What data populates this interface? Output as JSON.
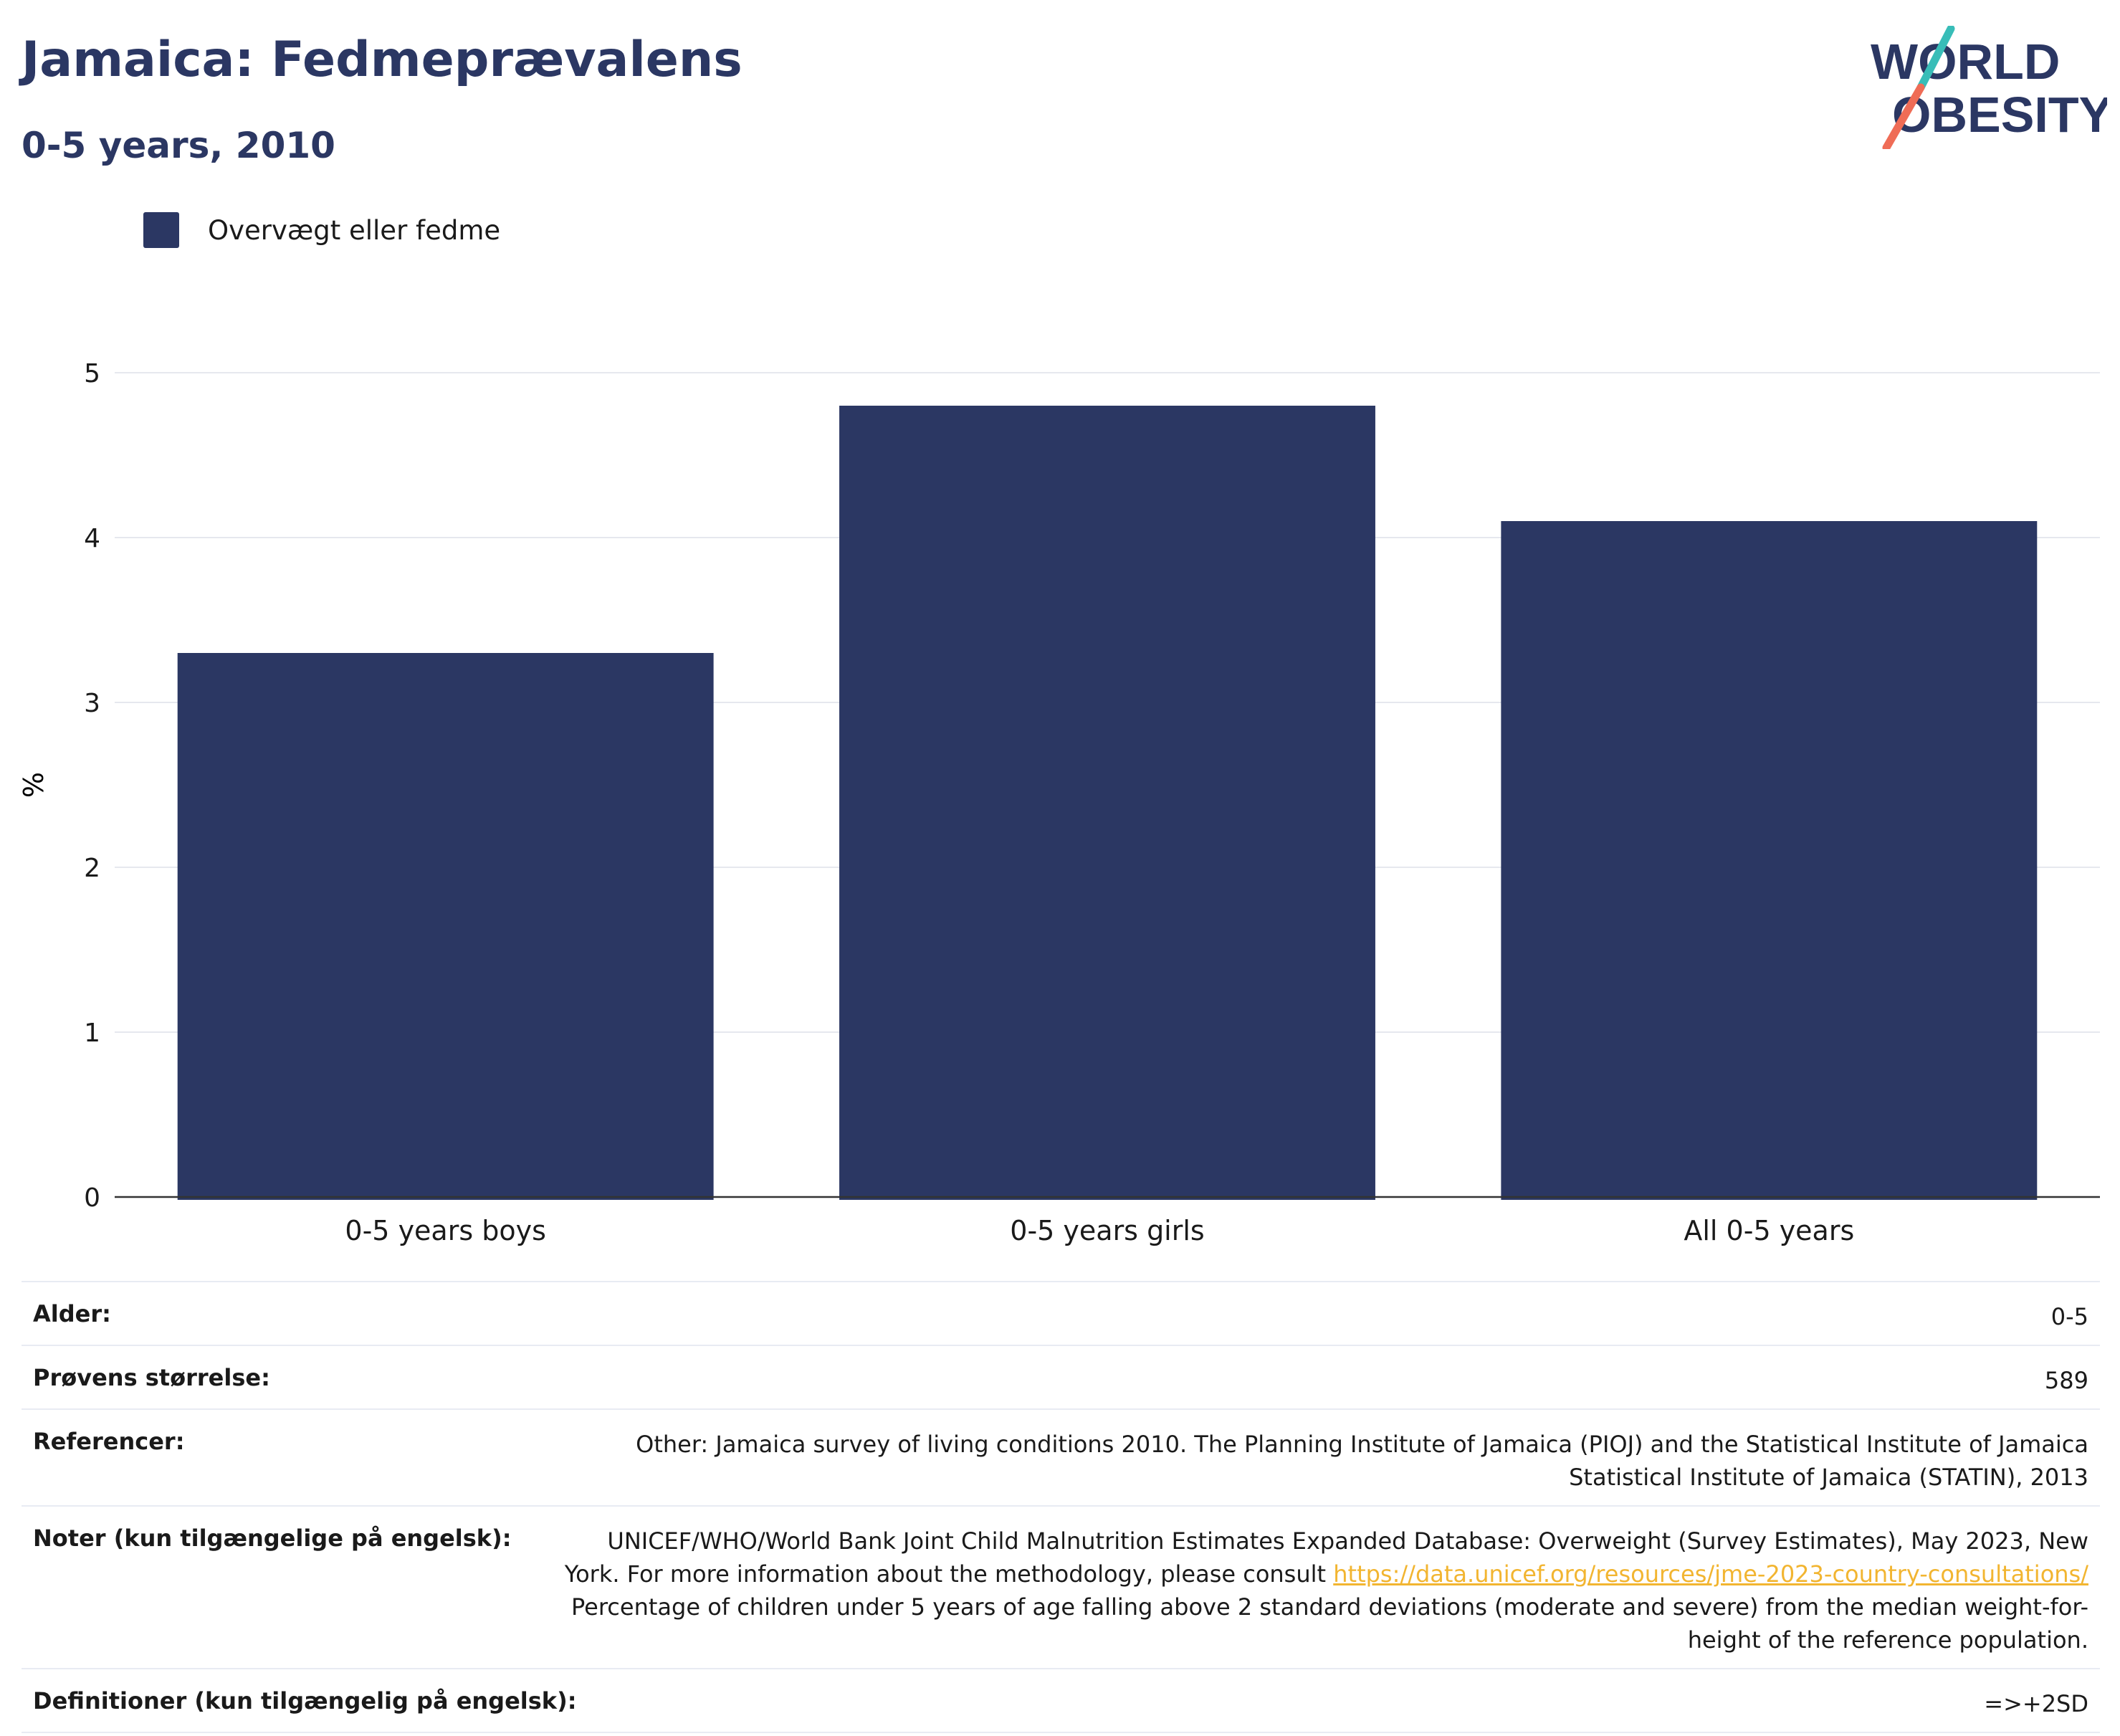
{
  "header": {
    "title": "Jamaica: Fedmeprævalens",
    "subtitle": "0-5 years, 2010"
  },
  "logo": {
    "line1": "WORLD",
    "line2": "OBESITY"
  },
  "colors": {
    "bar": "#2b3763",
    "title": "#2b3763",
    "link": "#f2b531",
    "grid": "#e6e8ee",
    "logo_slash_teal": "#38bdb8",
    "logo_slash_coral": "#ef6c56"
  },
  "chart_data": {
    "type": "bar",
    "categories": [
      "0-5 years boys",
      "0-5 years girls",
      "All 0-5 years"
    ],
    "series": [
      {
        "name": "Overvægt eller fedme",
        "values": [
          3.3,
          4.8,
          4.1
        ]
      }
    ],
    "ylabel": "%",
    "xlabel": "",
    "ylim": [
      0,
      5
    ],
    "yticks": [
      0,
      1,
      2,
      3,
      4,
      5
    ],
    "grid": true,
    "legend": "top-left"
  },
  "info": {
    "rows": [
      {
        "key": "Alder:",
        "value": "0-5"
      },
      {
        "key": "Prøvens størrelse:",
        "value": "589"
      },
      {
        "key": "Referencer:",
        "value": "Other: Jamaica survey of living conditions 2010. The Planning Institute of Jamaica (PIOJ) and the Statistical Institute of Jamaica Statistical Institute of Jamaica (STATIN), 2013"
      },
      {
        "key": "Noter (kun tilgængelige på engelsk):",
        "value_before": "UNICEF/WHO/World Bank Joint Child Malnutrition Estimates Expanded Database: Overweight (Survey Estimates), May 2023, New York. For more information about the methodology, please consult ",
        "link": "https://data.unicef.org/resources/jme-2023-country-consultations/",
        "value_after": " Percentage of children under 5 years of age falling above 2 standard deviations (moderate and severe) from the median weight-for-height of the reference population."
      },
      {
        "key": "Definitioner (kun tilgængelig på engelsk):",
        "value": "=>+2SD"
      }
    ]
  }
}
